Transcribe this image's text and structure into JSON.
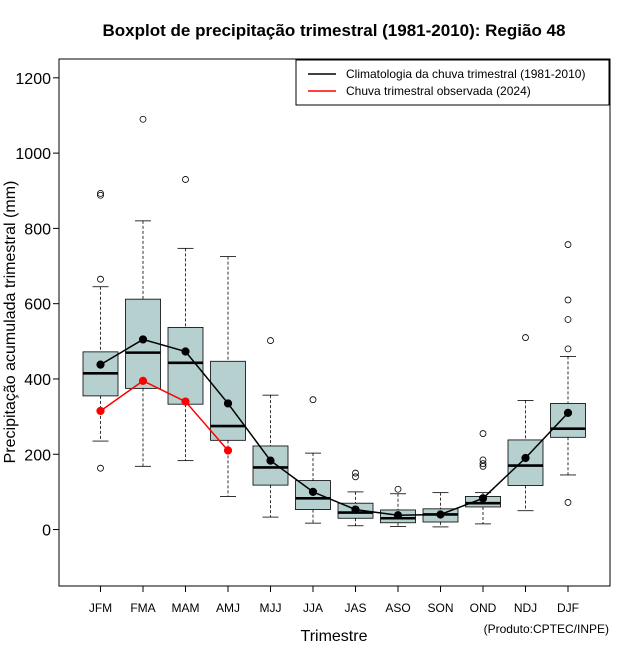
{
  "chart_data": {
    "type": "boxplot",
    "title": "Boxplot de precipitação trimestral (1981-2010): Região 48",
    "xlabel": "Trimestre",
    "ylabel": "Precipitação acumulada trimestral (mm)",
    "credit": "(Produto:CPTEC/INPE)",
    "ylim": [
      -150,
      1250
    ],
    "yticks": [
      0,
      200,
      400,
      600,
      800,
      1000,
      1200
    ],
    "categories": [
      "JFM",
      "FMA",
      "MAM",
      "AMJ",
      "MJJ",
      "JJA",
      "JAS",
      "ASO",
      "SON",
      "OND",
      "NDJ",
      "DJF"
    ],
    "boxes": [
      {
        "min": 235,
        "q1": 355,
        "median": 415,
        "q3": 472,
        "max": 645,
        "outliers": [
          163,
          665,
          888,
          893
        ]
      },
      {
        "min": 168,
        "q1": 375,
        "median": 470,
        "q3": 612,
        "max": 820,
        "outliers": [
          1090
        ]
      },
      {
        "min": 183,
        "q1": 333,
        "median": 443,
        "q3": 537,
        "max": 747,
        "outliers": [
          930
        ]
      },
      {
        "min": 88,
        "q1": 237,
        "median": 275,
        "q3": 447,
        "max": 725,
        "outliers": []
      },
      {
        "min": 33,
        "q1": 118,
        "median": 165,
        "q3": 222,
        "max": 357,
        "outliers": [
          502
        ]
      },
      {
        "min": 17,
        "q1": 53,
        "median": 83,
        "q3": 130,
        "max": 203,
        "outliers": [
          345
        ]
      },
      {
        "min": 10,
        "q1": 30,
        "median": 45,
        "q3": 70,
        "max": 100,
        "outliers": [
          140,
          150
        ]
      },
      {
        "min": 8,
        "q1": 18,
        "median": 30,
        "q3": 52,
        "max": 95,
        "outliers": [
          107
        ]
      },
      {
        "min": 7,
        "q1": 20,
        "median": 40,
        "q3": 55,
        "max": 98,
        "outliers": []
      },
      {
        "min": 15,
        "q1": 60,
        "median": 70,
        "q3": 88,
        "max": 98,
        "outliers": [
          168,
          175,
          185,
          255
        ]
      },
      {
        "min": 50,
        "q1": 117,
        "median": 170,
        "q3": 238,
        "max": 343,
        "outliers": [
          510
        ]
      },
      {
        "min": 145,
        "q1": 245,
        "median": 268,
        "q3": 335,
        "max": 460,
        "outliers": [
          72,
          480,
          558,
          610,
          757
        ]
      }
    ],
    "series": [
      {
        "name": "Climatologia da chuva trimestral (1981-2010)",
        "color": "#000000",
        "values": [
          438,
          505,
          473,
          335,
          183,
          100,
          53,
          38,
          40,
          83,
          190,
          310
        ]
      },
      {
        "name": "Chuva trimestral observada (2024)",
        "color": "#ff0000",
        "values": [
          315,
          395,
          340,
          210,
          null,
          null,
          null,
          null,
          null,
          null,
          null,
          null
        ]
      }
    ],
    "box_fill": "#b6cfcf",
    "legend_position": "top-right"
  }
}
